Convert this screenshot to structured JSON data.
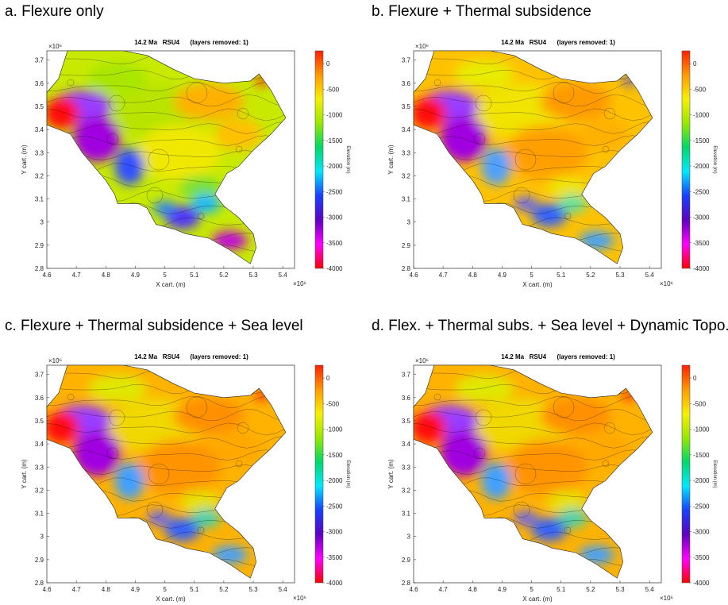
{
  "panels": [
    {
      "heading": "a. Flexure only",
      "plot_title": "14.2 Ma   RSU4      (layers removed: 1)",
      "variant": 0
    },
    {
      "heading": "b. Flexure + Thermal subsidence",
      "plot_title": "14.2 Ma   RSU4      (layers removed: 1)",
      "variant": 1
    },
    {
      "heading": "c. Flexure + Thermal subsidence + Sea level",
      "plot_title": "14.2 Ma   RSU4      (layers removed: 1)",
      "variant": 2
    },
    {
      "heading": "d. Flex. + Thermal subs. + Sea level + Dynamic Topo.",
      "plot_title": "14.2 Ma   RSU4      (layers removed: 1)",
      "variant": 2
    }
  ],
  "map": {
    "xlabel": "X cart. (m)",
    "ylabel": "Y cart. (m)",
    "x_ticks": [
      "4.6",
      "4.7",
      "4.8",
      "4.9",
      "5",
      "5.1",
      "5.2",
      "5.3",
      "5.4"
    ],
    "y_ticks": [
      "3.7",
      "3.6",
      "3.5",
      "3.4",
      "3.3",
      "3.2",
      "3.1",
      "3",
      "2.9",
      "2.8"
    ],
    "x_exponent": "×10⁶",
    "y_exponent": "×10⁶",
    "xlim": [
      4.6,
      5.44
    ],
    "ylim": [
      2.8,
      3.74
    ],
    "colorbar": {
      "label": "Elevation (m)",
      "ticks": [
        "0",
        "-500",
        "-1000",
        "-1500",
        "-2000",
        "-2500",
        "-3000",
        "-3500",
        "-4000"
      ],
      "range": [
        -4000,
        250
      ],
      "colormap": [
        "#ff0000",
        "#ff00ff",
        "#6000c0",
        "#1840ff",
        "#00e8ff",
        "#00d86a",
        "#98e800",
        "#f6f000",
        "#ff9a00",
        "#ff2000"
      ]
    }
  }
}
